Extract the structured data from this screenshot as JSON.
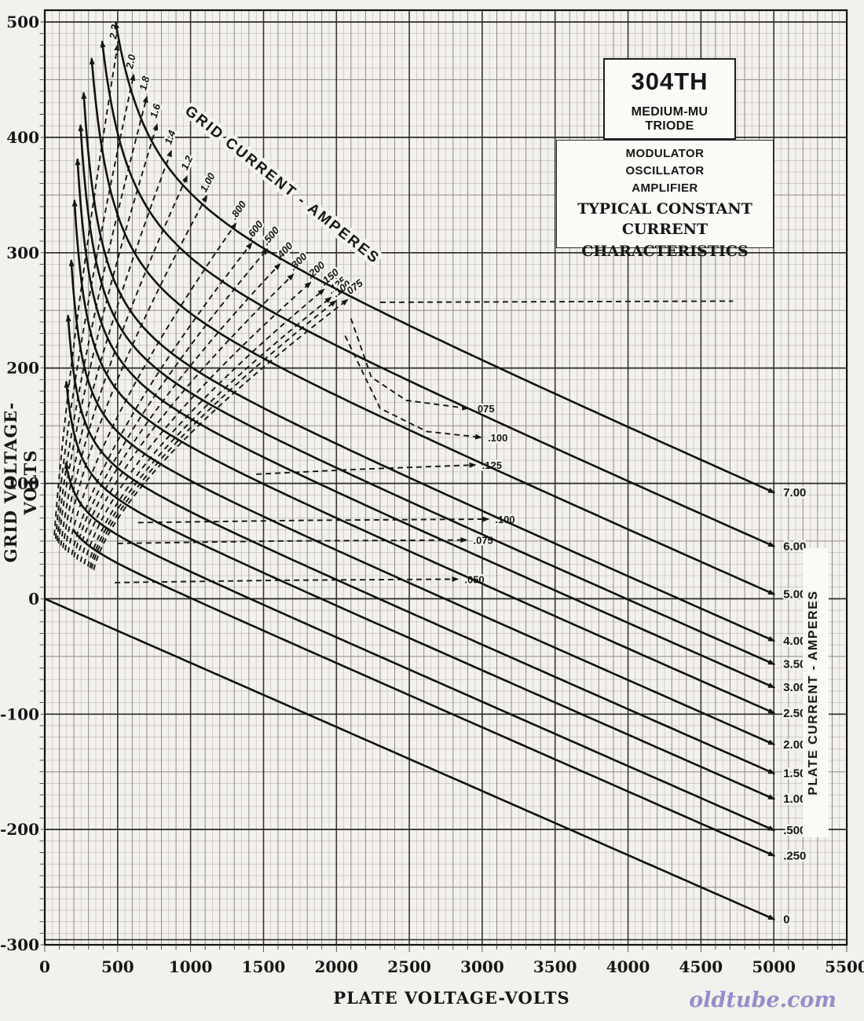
{
  "page": {
    "background": "#f3f1ed",
    "ink": "#161616",
    "watermark_color": "#968dcb"
  },
  "title_box": {
    "model": "304TH",
    "subtitle": "MEDIUM-MU TRIODE",
    "lines": [
      "MODULATOR",
      "OSCILLATOR",
      "AMPLIFIER"
    ],
    "caption_line1": "TYPICAL CONSTANT CURRENT",
    "caption_line2": "CHARACTERISTICS"
  },
  "axes": {
    "x_label": "PLATE VOLTAGE-VOLTS",
    "y_label": "GRID VOLTAGE-VOLTS",
    "right_label": "PLATE CURRENT - AMPERES",
    "diag_label": "GRID CURRENT - AMPERES",
    "x_ticks": [
      0,
      500,
      1000,
      1500,
      2000,
      2500,
      3000,
      3500,
      4000,
      4500,
      5000,
      5500
    ],
    "y_ticks": [
      500,
      400,
      300,
      200,
      100,
      0,
      -100,
      -200,
      -300
    ]
  },
  "watermark": {
    "text": "oldtube.com"
  },
  "chart_data": {
    "type": "line",
    "title": "304TH TYPICAL CONSTANT CURRENT CHARACTERISTICS",
    "xlabel": "PLATE VOLTAGE-VOLTS",
    "ylabel": "GRID VOLTAGE-VOLTS",
    "y2label": "PLATE CURRENT - AMPERES",
    "xlim": [
      0,
      5500
    ],
    "ylim": [
      -300,
      500
    ],
    "grid": "on",
    "mu_model": 18,
    "plate_current_lines": [
      {
        "amps": 7.0,
        "label": "7.00",
        "vg_at_vp5000": 92,
        "model": {
          "C": 367,
          "va": 146,
          "K": 1003000,
          "vg_top": 500
        }
      },
      {
        "amps": 6.0,
        "label": "6.00",
        "vg_at_vp5000": 45,
        "model": {
          "C": 321,
          "va": 132,
          "K": 779000,
          "vg_top": 500
        }
      },
      {
        "amps": 5.0,
        "label": "5.00",
        "vg_at_vp5000": 4,
        "model": {
          "C": 280,
          "va": 117,
          "K": 603000,
          "vg_top": 480
        }
      },
      {
        "amps": 4.0,
        "label": "4.00",
        "vg_at_vp5000": -36,
        "model": {
          "C": 240,
          "va": 101,
          "K": 453000,
          "vg_top": 450
        }
      },
      {
        "amps": 3.5,
        "label": "3.50",
        "vg_at_vp5000": -57,
        "model": {
          "C": 220,
          "va": 92,
          "K": 386000,
          "vg_top": 425
        }
      },
      {
        "amps": 3.0,
        "label": "3.00",
        "vg_at_vp5000": -77,
        "model": {
          "C": 200,
          "va": 83,
          "K": 324000,
          "vg_top": 395
        }
      },
      {
        "amps": 2.5,
        "label": "2.50",
        "vg_at_vp5000": -99,
        "model": {
          "C": 178,
          "va": 74,
          "K": 263000,
          "vg_top": 355
        }
      },
      {
        "amps": 2.0,
        "label": "2.00",
        "vg_at_vp5000": -126,
        "model": {
          "C": 151,
          "va": 63,
          "K": 196000,
          "vg_top": 310
        }
      },
      {
        "amps": 1.5,
        "label": "1.50",
        "vg_at_vp5000": -151,
        "model": {
          "C": 126,
          "va": 52,
          "K": 143000,
          "vg_top": 260
        }
      },
      {
        "amps": 1.0,
        "label": "1.00",
        "vg_at_vp5000": -174,
        "model": {
          "C": 104,
          "va": 40,
          "K": 103000,
          "vg_top": 200
        }
      },
      {
        "amps": 0.5,
        "label": ".500",
        "vg_at_vp5000": -201,
        "model": {
          "C": 77,
          "va": 25,
          "K": 63000,
          "vg_top": 120
        }
      },
      {
        "amps": 0.25,
        "label": ".250",
        "vg_at_vp5000": -223,
        "model": {
          "C": 55,
          "va": 16,
          "K": 38000,
          "vg_top": 60
        }
      },
      {
        "amps": 0.0,
        "label": "0",
        "vg_at_vp5000": -278,
        "model": {
          "C": 0,
          "va": 0,
          "K": 0,
          "vg_top": 2
        }
      }
    ],
    "grid_current_lines_upper": [
      {
        "amps": 2.2,
        "label": "2.2",
        "base": [
          65,
          55
        ],
        "mid": [
          220,
          240
        ],
        "tip": [
          500,
          480
        ]
      },
      {
        "amps": 2.0,
        "label": "2.0",
        "base": [
          75,
          52
        ],
        "mid": [
          255,
          225
        ],
        "tip": [
          610,
          454
        ]
      },
      {
        "amps": 1.8,
        "label": "1.8",
        "base": [
          85,
          50
        ],
        "mid": [
          290,
          215
        ],
        "tip": [
          700,
          435
        ]
      },
      {
        "amps": 1.6,
        "label": "1.6",
        "base": [
          95,
          48
        ],
        "mid": [
          320,
          205
        ],
        "tip": [
          770,
          411
        ]
      },
      {
        "amps": 1.4,
        "label": "1.4",
        "base": [
          110,
          46
        ],
        "mid": [
          360,
          195
        ],
        "tip": [
          867,
          388
        ]
      },
      {
        "amps": 1.2,
        "label": "1.2",
        "base": [
          125,
          44
        ],
        "mid": [
          400,
          185
        ],
        "tip": [
          975,
          366
        ]
      },
      {
        "amps": 1.0,
        "label": "1.00",
        "base": [
          140,
          42
        ],
        "mid": [
          450,
          175
        ],
        "tip": [
          1110,
          349
        ]
      },
      {
        "amps": 0.8,
        "label": ".800",
        "base": [
          160,
          40
        ],
        "mid": [
          520,
          163
        ],
        "tip": [
          1309,
          325
        ]
      },
      {
        "amps": 0.6,
        "label": ".600",
        "base": [
          185,
          38
        ],
        "mid": [
          580,
          155
        ],
        "tip": [
          1417,
          308
        ]
      },
      {
        "amps": 0.5,
        "label": ".500",
        "base": [
          200,
          36
        ],
        "mid": [
          620,
          150
        ],
        "tip": [
          1525,
          303
        ]
      },
      {
        "amps": 0.4,
        "label": ".400",
        "base": [
          220,
          34
        ],
        "mid": [
          660,
          145
        ],
        "tip": [
          1611,
          290
        ]
      },
      {
        "amps": 0.3,
        "label": ".300",
        "base": [
          245,
          32
        ],
        "mid": [
          700,
          140
        ],
        "tip": [
          1703,
          281
        ]
      },
      {
        "amps": 0.2,
        "label": ".200",
        "base": [
          270,
          30
        ],
        "mid": [
          750,
          136
        ],
        "tip": [
          1821,
          274
        ]
      },
      {
        "amps": 0.15,
        "label": ".150",
        "base": [
          295,
          28
        ],
        "mid": [
          790,
          132
        ],
        "tip": [
          1913,
          268
        ]
      },
      {
        "amps": 0.125,
        "label": ".125",
        "base": [
          310,
          27
        ],
        "mid": [
          810,
          128
        ],
        "tip": [
          1961,
          261
        ]
      },
      {
        "amps": 0.1,
        "label": ".100",
        "base": [
          320,
          26
        ],
        "mid": [
          825,
          125
        ],
        "tip": [
          1993,
          258
        ]
      },
      {
        "amps": 0.075,
        "label": ".075",
        "base": [
          335,
          25
        ],
        "mid": [
          850,
          124
        ],
        "tip": [
          2074,
          259
        ]
      }
    ],
    "grid_current_lines_lower": [
      {
        "amps": 0.075,
        "label": ".075",
        "pts": [
          [
            2100,
            243
          ],
          [
            2240,
            192
          ],
          [
            2480,
            172
          ],
          [
            2900,
            165
          ]
        ]
      },
      {
        "amps": 0.1,
        "label": ".100",
        "pts": [
          [
            2060,
            228
          ],
          [
            2300,
            165
          ],
          [
            2620,
            145
          ],
          [
            2990,
            140
          ]
        ]
      },
      {
        "amps": 0.125,
        "label": ".125",
        "pts": [
          [
            1450,
            108
          ],
          [
            2100,
            112
          ],
          [
            2950,
            116
          ]
        ]
      },
      {
        "amps": 0.1,
        "label": ".100",
        "pts": [
          [
            640,
            66
          ],
          [
            1800,
            68
          ],
          [
            3040,
            69
          ]
        ]
      },
      {
        "amps": 0.075,
        "label": ".075",
        "pts": [
          [
            500,
            48
          ],
          [
            1600,
            50
          ],
          [
            2890,
            51
          ]
        ]
      },
      {
        "amps": 0.05,
        "label": ".050",
        "pts": [
          [
            480,
            14
          ],
          [
            1600,
            16
          ],
          [
            2830,
            17
          ]
        ]
      },
      {
        "amps": 0.075,
        "label": "",
        "pts": [
          [
            2300,
            257
          ],
          [
            4720,
            258
          ]
        ]
      }
    ]
  }
}
